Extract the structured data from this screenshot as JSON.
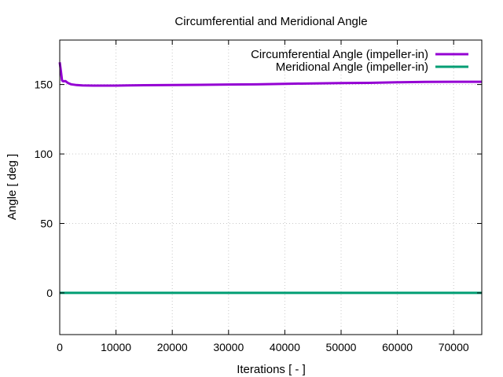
{
  "chart_data": {
    "type": "line",
    "title": "Circumferential and Meridional Angle",
    "xlabel": "Iterations [ - ]",
    "ylabel": "Angle [ deg ]",
    "xlim": [
      0,
      75000
    ],
    "ylim": [
      -30,
      182
    ],
    "x_ticks": [
      0,
      10000,
      20000,
      30000,
      40000,
      50000,
      60000,
      70000
    ],
    "y_ticks": [
      0,
      50,
      100,
      150
    ],
    "grid": true,
    "legend_position": "top-right",
    "series": [
      {
        "name": "Circumferential Angle (impeller-in)",
        "color": "#9400d3",
        "x": [
          0,
          200,
          400,
          600,
          1000,
          1500,
          2000,
          3000,
          4000,
          6000,
          8000,
          10000,
          12000,
          15000,
          20000,
          25000,
          30000,
          35000,
          40000,
          45000,
          50000,
          55000,
          60000,
          65000,
          70000,
          75000
        ],
        "y": [
          166,
          160,
          153,
          152.3,
          152.5,
          151,
          150.2,
          149.6,
          149.4,
          149.2,
          149.2,
          149.2,
          149.3,
          149.5,
          149.6,
          149.8,
          150,
          150.1,
          150.5,
          150.8,
          151,
          151.2,
          151.6,
          151.9,
          152,
          152
        ]
      },
      {
        "name": "Meridional Angle (impeller-in)",
        "color": "#009e73",
        "x": [
          0,
          75000
        ],
        "y": [
          0,
          0
        ]
      }
    ]
  }
}
